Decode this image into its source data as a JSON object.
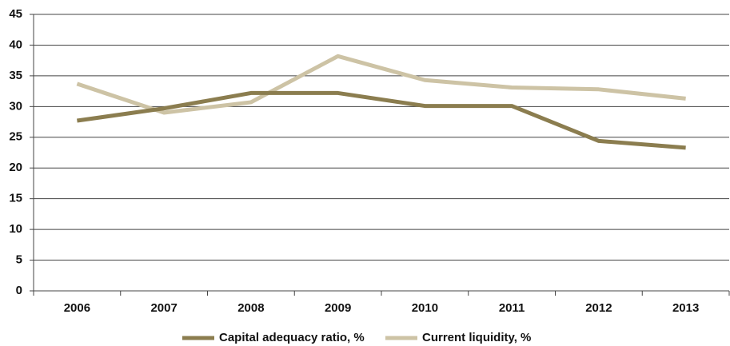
{
  "chart_data": {
    "type": "line",
    "categories": [
      "2006",
      "2007",
      "2008",
      "2009",
      "2010",
      "2011",
      "2012",
      "2013"
    ],
    "series": [
      {
        "name": "Capital adequacy ratio, %",
        "color": "#8b7d4f",
        "values": [
          27.7,
          29.7,
          32.2,
          32.2,
          30.1,
          30.1,
          24.4,
          23.3
        ]
      },
      {
        "name": "Current liquidity, %",
        "color": "#cdc3a5",
        "values": [
          33.7,
          29.0,
          30.7,
          38.2,
          34.3,
          33.1,
          32.8,
          31.3
        ]
      }
    ],
    "ylim": [
      0,
      45
    ],
    "yticks": [
      0,
      5,
      10,
      15,
      20,
      25,
      30,
      35,
      40,
      45
    ],
    "grid": true
  }
}
